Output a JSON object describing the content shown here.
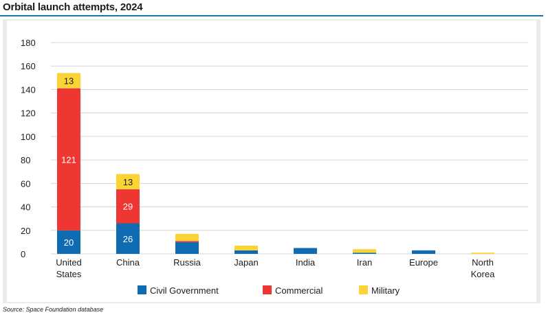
{
  "title": "Orbital launch attempts, 2024",
  "source": "Source: Space Foundation database",
  "chart_data": {
    "type": "bar",
    "stacked": true,
    "title": "Orbital launch attempts, 2024",
    "xlabel": "",
    "ylabel": "",
    "ylim": [
      0,
      180
    ],
    "yticks": [
      0,
      20,
      40,
      60,
      80,
      100,
      120,
      140,
      160,
      180
    ],
    "grid": true,
    "legend_position": "bottom",
    "categories": [
      [
        "United",
        "States"
      ],
      [
        "China"
      ],
      [
        "Russia"
      ],
      [
        "Japan"
      ],
      [
        "India"
      ],
      [
        "Iran"
      ],
      [
        "Europe"
      ],
      [
        "North",
        "Korea"
      ]
    ],
    "series": [
      {
        "name": "Civil Government",
        "color": "#0f6cb2",
        "values": [
          20,
          26,
          10,
          3,
          5,
          1,
          3,
          0
        ]
      },
      {
        "name": "Commercial",
        "color": "#ee3732",
        "values": [
          121,
          29,
          1,
          0,
          0,
          0,
          0,
          0
        ]
      },
      {
        "name": "Military",
        "color": "#fcd335",
        "values": [
          13,
          13,
          6,
          4,
          0,
          3,
          0,
          1
        ]
      }
    ],
    "data_labels": [
      {
        "series": 0,
        "category": 0,
        "text": "20"
      },
      {
        "series": 1,
        "category": 0,
        "text": "121"
      },
      {
        "series": 2,
        "category": 0,
        "text": "13"
      },
      {
        "series": 0,
        "category": 1,
        "text": "26"
      },
      {
        "series": 1,
        "category": 1,
        "text": "29"
      },
      {
        "series": 2,
        "category": 1,
        "text": "13"
      }
    ]
  }
}
